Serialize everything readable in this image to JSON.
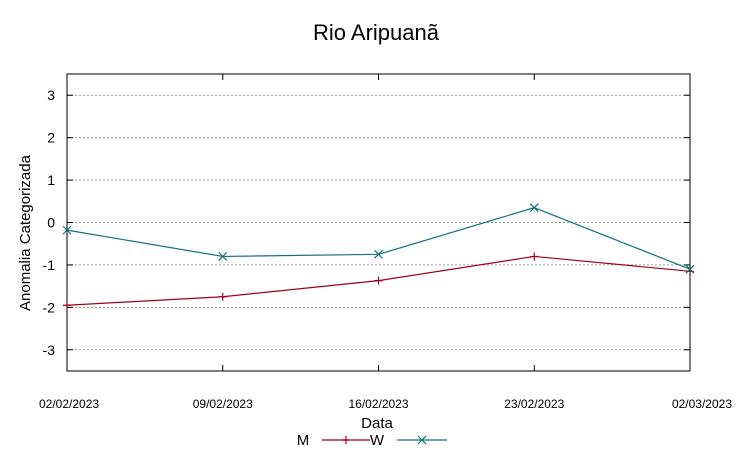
{
  "chart_data": {
    "type": "line",
    "title": "Rio Aripuanã",
    "xlabel": "Data",
    "ylabel": "Anomalia Categorizada",
    "categories": [
      "02/02/2023",
      "09/02/2023",
      "16/02/2023",
      "23/02/2023",
      "02/03/2023"
    ],
    "ylim": [
      -3.5,
      3.5
    ],
    "yticks": [
      -3,
      -2,
      -1,
      0,
      1,
      2,
      3
    ],
    "grid": true,
    "legend_position": "bottom-center",
    "series": [
      {
        "name": "M",
        "marker": "+",
        "color": "#a0001e",
        "values": [
          -1.95,
          -1.75,
          -1.37,
          -0.8,
          -1.15
        ]
      },
      {
        "name": "W",
        "marker": "x",
        "color": "#0f7378",
        "values": [
          -0.18,
          -0.8,
          -0.75,
          0.35,
          -1.1
        ]
      }
    ]
  }
}
